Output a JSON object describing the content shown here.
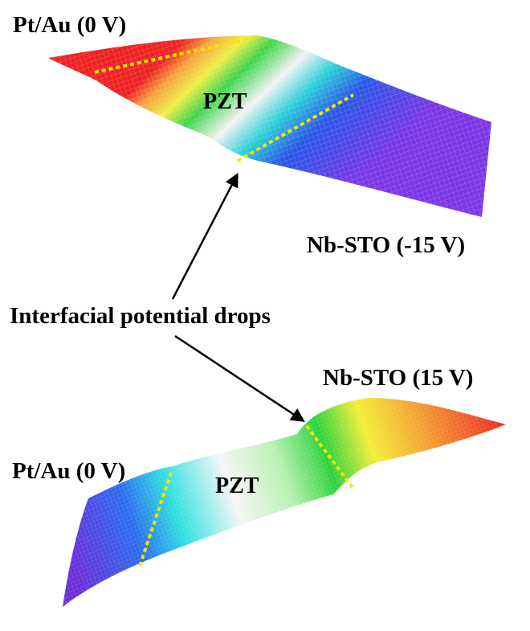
{
  "labels": {
    "top_left_electrode": "Pt/Au (0 V)",
    "top_middle_layer": "PZT",
    "top_right_electrode": "Nb-STO (-15 V)",
    "annotation": "Interfacial potential drops",
    "bottom_right_electrode": "Nb-STO (15 V)",
    "bottom_left_electrode": "Pt/Au (0 V)",
    "bottom_middle_layer": "PZT"
  },
  "colors": {
    "interface_dash": "#f2e600",
    "arrow": "#000000",
    "gradient_top": [
      "#ee2222",
      "#f6a23a",
      "#f0ee4a",
      "#3fd54a",
      "#f2f2f2",
      "#2bd0d8",
      "#2a57e8",
      "#7a37e6"
    ],
    "gradient_bottom": [
      "#6a2fd8",
      "#2a6cf0",
      "#2fe0e0",
      "#f6f6f6",
      "#b6f1b0",
      "#2cd23c",
      "#f4ee38",
      "#f4a030",
      "#ee2424"
    ]
  }
}
